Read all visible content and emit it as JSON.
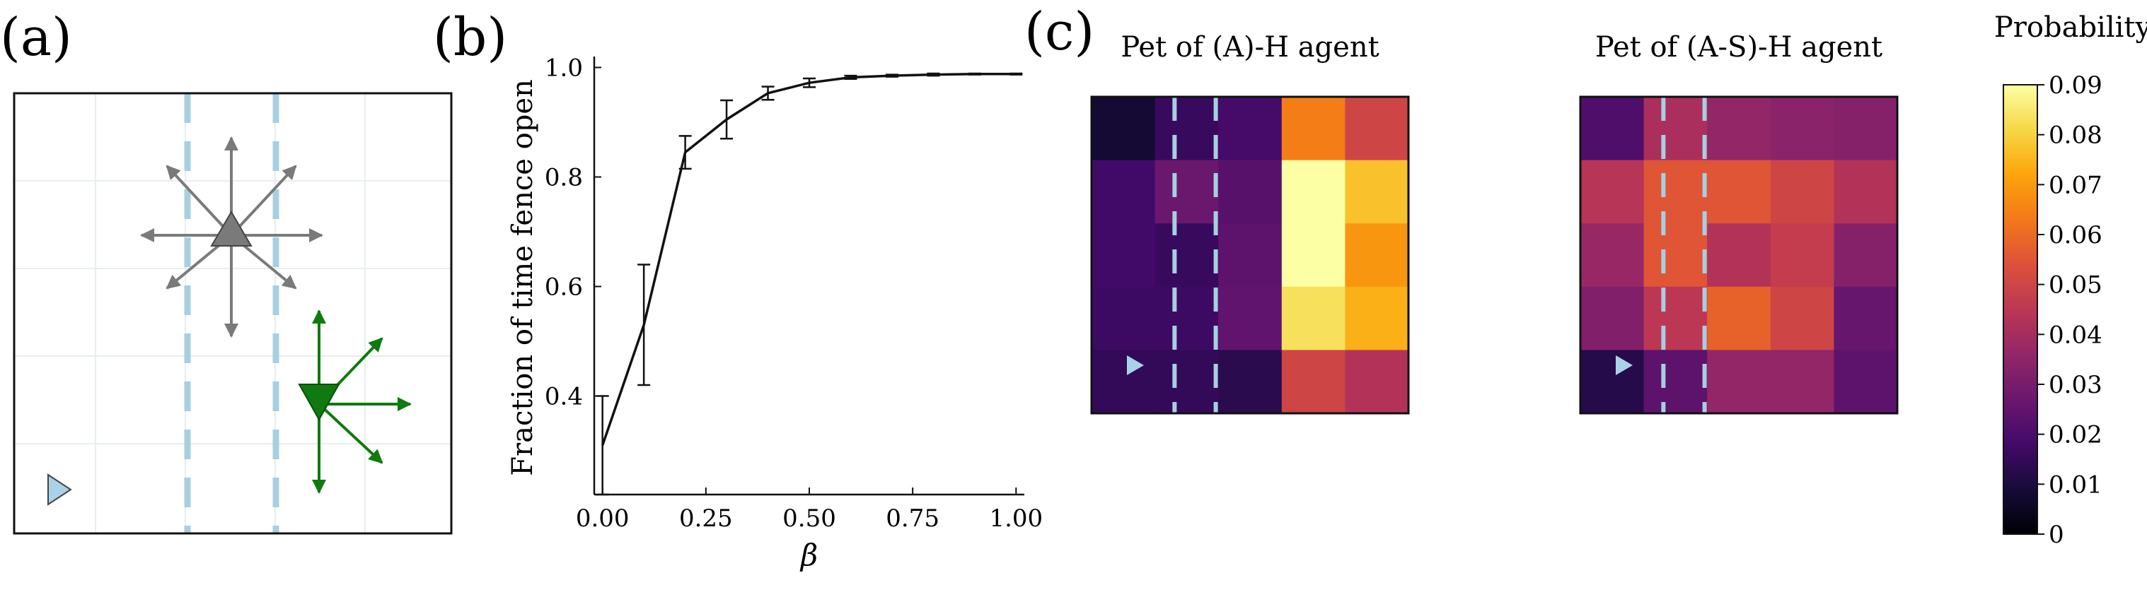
{
  "panels": {
    "a": {
      "label": "(a)"
    },
    "b": {
      "label": "(b)"
    },
    "c": {
      "label": "(c)"
    }
  },
  "colors": {
    "fence": "#a8cfe0",
    "agent_gray": "#7a7a7a",
    "agent_green": "#0f7a0f",
    "goal": "#a9d2e6",
    "grid": "#e6eef2"
  },
  "chart_data": [
    {
      "type": "line",
      "panel": "b",
      "xlabel": "β",
      "ylabel": "Fraction of time fence open",
      "xlim": [
        -0.02,
        1.02
      ],
      "ylim": [
        0.22,
        1.02
      ],
      "xticks": [
        "0.00",
        "0.25",
        "0.50",
        "0.75",
        "1.00"
      ],
      "xtick_values": [
        0,
        0.25,
        0.5,
        0.75,
        1.0
      ],
      "yticks": [
        "0.4",
        "0.6",
        "0.8",
        "1.0"
      ],
      "ytick_values": [
        0.4,
        0.6,
        0.8,
        1.0
      ],
      "x": [
        0.0,
        0.1,
        0.2,
        0.3,
        0.4,
        0.5,
        0.6,
        0.7,
        0.8,
        0.9,
        1.0
      ],
      "y": [
        0.31,
        0.53,
        0.845,
        0.905,
        0.953,
        0.972,
        0.982,
        0.985,
        0.987,
        0.988,
        0.988
      ],
      "err": [
        0.09,
        0.11,
        0.03,
        0.035,
        0.012,
        0.008,
        0.003,
        0.002,
        0.002,
        0.001,
        0.001
      ]
    },
    {
      "type": "heatmap",
      "panel": "c-left",
      "title": "Pet of (A)-H agent",
      "values": [
        [
          0.008,
          0.016,
          0.019,
          0.064,
          0.05
        ],
        [
          0.018,
          0.027,
          0.023,
          0.09,
          0.077
        ],
        [
          0.018,
          0.016,
          0.024,
          0.09,
          0.069
        ],
        [
          0.017,
          0.017,
          0.025,
          0.083,
          0.074
        ],
        [
          0.015,
          0.015,
          0.013,
          0.05,
          0.043
        ]
      ]
    },
    {
      "type": "heatmap",
      "panel": "c-right",
      "title": "Pet of (A-S)-H agent",
      "values": [
        [
          0.021,
          0.041,
          0.036,
          0.034,
          0.033
        ],
        [
          0.044,
          0.055,
          0.055,
          0.05,
          0.043
        ],
        [
          0.037,
          0.055,
          0.043,
          0.047,
          0.033
        ],
        [
          0.032,
          0.045,
          0.058,
          0.05,
          0.026
        ],
        [
          0.012,
          0.024,
          0.036,
          0.036,
          0.024
        ]
      ]
    },
    {
      "type": "colorbar",
      "title": "Probability",
      "min": 0,
      "max": 0.09,
      "ticks": [
        "0.09",
        "0.08",
        "0.07",
        "0.06",
        "0.05",
        "0.04",
        "0.03",
        "0.02",
        "0.01",
        "0"
      ],
      "tick_values": [
        0.09,
        0.08,
        0.07,
        0.06,
        0.05,
        0.04,
        0.03,
        0.02,
        0.01,
        0
      ]
    }
  ]
}
